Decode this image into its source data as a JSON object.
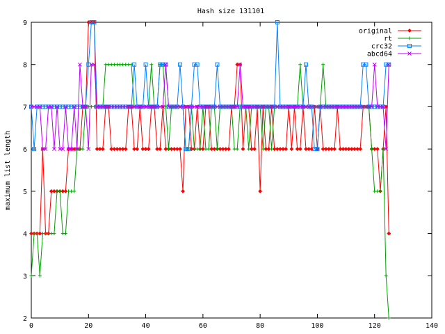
{
  "chart_data": {
    "type": "line",
    "title": "Hash size 131101",
    "xlabel": "",
    "ylabel": "maximum list length",
    "xlim": [
      0,
      140
    ],
    "ylim": [
      2,
      9
    ],
    "xticks": [
      0,
      20,
      40,
      60,
      80,
      100,
      120,
      140
    ],
    "yticks": [
      2,
      3,
      4,
      5,
      6,
      7,
      8,
      9
    ],
    "grid": false,
    "legend_position": "top-right",
    "series": [
      {
        "name": "original",
        "color": "#ff0000",
        "marker": "diamond",
        "values": [
          4,
          4,
          4,
          4,
          6,
          4,
          4,
          5,
          5,
          5,
          5,
          5,
          5,
          6,
          6,
          6,
          6,
          6,
          7,
          7,
          9,
          9,
          9,
          6,
          6,
          6,
          7,
          7,
          6,
          6,
          6,
          6,
          6,
          6,
          7,
          7,
          6,
          6,
          7,
          6,
          6,
          6,
          7,
          7,
          6,
          6,
          7,
          6,
          6,
          6,
          6,
          6,
          6,
          5,
          7,
          7,
          6,
          6,
          7,
          6,
          6,
          7,
          7,
          6,
          6,
          6,
          6,
          6,
          6,
          6,
          7,
          7,
          8,
          8,
          6,
          7,
          7,
          6,
          6,
          7,
          5,
          7,
          6,
          6,
          7,
          6,
          6,
          6,
          6,
          6,
          7,
          6,
          7,
          6,
          6,
          7,
          6,
          6,
          6,
          7,
          6,
          7,
          6,
          6,
          6,
          6,
          6,
          7,
          6,
          6,
          6,
          6,
          6,
          6,
          6,
          6,
          7,
          7,
          7,
          6,
          6,
          6,
          5,
          6,
          7,
          4
        ]
      },
      {
        "name": "rt",
        "color": "#00a000",
        "marker": "plus",
        "values": [
          3,
          4,
          4,
          3,
          4,
          4,
          4,
          4,
          4,
          5,
          5,
          4,
          4,
          5,
          5,
          5,
          6,
          6,
          6,
          7,
          7,
          7,
          7,
          7,
          7,
          7,
          8,
          8,
          8,
          8,
          8,
          8,
          8,
          8,
          8,
          8,
          7,
          7,
          7,
          7,
          7,
          7,
          8,
          7,
          7,
          8,
          8,
          7,
          6,
          7,
          7,
          7,
          7,
          7,
          6,
          6,
          7,
          6,
          6,
          6,
          7,
          6,
          6,
          7,
          7,
          6,
          7,
          7,
          7,
          7,
          7,
          6,
          6,
          7,
          7,
          7,
          6,
          7,
          7,
          7,
          7,
          6,
          7,
          7,
          6,
          7,
          7,
          7,
          7,
          7,
          7,
          7,
          7,
          7,
          8,
          7,
          7,
          7,
          7,
          7,
          7,
          7,
          8,
          7,
          7,
          7,
          7,
          7,
          7,
          7,
          7,
          7,
          7,
          7,
          7,
          7,
          7,
          7,
          7,
          6,
          5,
          5,
          5,
          6,
          3,
          2
        ]
      },
      {
        "name": "crc32",
        "color": "#0080ff",
        "marker": "square",
        "values": [
          7,
          6,
          7,
          7,
          7,
          7,
          7,
          7,
          7,
          7,
          7,
          7,
          7,
          7,
          7,
          7,
          7,
          7,
          7,
          7,
          8,
          9,
          9,
          7,
          7,
          7,
          7,
          7,
          7,
          7,
          7,
          7,
          7,
          7,
          7,
          7,
          8,
          7,
          7,
          7,
          8,
          7,
          7,
          7,
          7,
          8,
          8,
          8,
          7,
          7,
          7,
          7,
          8,
          7,
          6,
          6,
          7,
          8,
          8,
          7,
          7,
          7,
          7,
          7,
          7,
          8,
          7,
          7,
          7,
          7,
          7,
          7,
          7,
          7,
          7,
          7,
          7,
          7,
          7,
          7,
          7,
          7,
          7,
          7,
          7,
          7,
          9,
          7,
          7,
          7,
          7,
          7,
          7,
          7,
          7,
          7,
          8,
          7,
          7,
          6,
          6,
          7,
          7,
          7,
          7,
          7,
          7,
          7,
          7,
          7,
          7,
          7,
          7,
          7,
          7,
          7,
          8,
          8,
          7,
          7,
          7,
          7,
          7,
          7,
          8,
          8
        ]
      },
      {
        "name": "abcd64",
        "color": "#c000ff",
        "marker": "x",
        "values": [
          7,
          7,
          7,
          7,
          6,
          6,
          7,
          7,
          6,
          7,
          6,
          6,
          7,
          6,
          6,
          7,
          6,
          8,
          7,
          7,
          6,
          8,
          8,
          7,
          7,
          7,
          7,
          7,
          7,
          7,
          7,
          7,
          7,
          7,
          7,
          7,
          7,
          7,
          7,
          7,
          7,
          7,
          7,
          7,
          7,
          7,
          7,
          8,
          7,
          7,
          7,
          7,
          7,
          7,
          7,
          7,
          7,
          7,
          7,
          7,
          7,
          7,
          7,
          7,
          7,
          7,
          7,
          7,
          7,
          7,
          7,
          7,
          7,
          8,
          7,
          7,
          7,
          7,
          7,
          7,
          7,
          7,
          7,
          7,
          7,
          7,
          7,
          7,
          7,
          7,
          7,
          7,
          7,
          7,
          7,
          7,
          7,
          7,
          7,
          7,
          7,
          7,
          7,
          7,
          7,
          7,
          7,
          7,
          7,
          7,
          7,
          7,
          7,
          7,
          7,
          7,
          7,
          7,
          7,
          7,
          8,
          7,
          7,
          7,
          6,
          8
        ]
      }
    ]
  }
}
